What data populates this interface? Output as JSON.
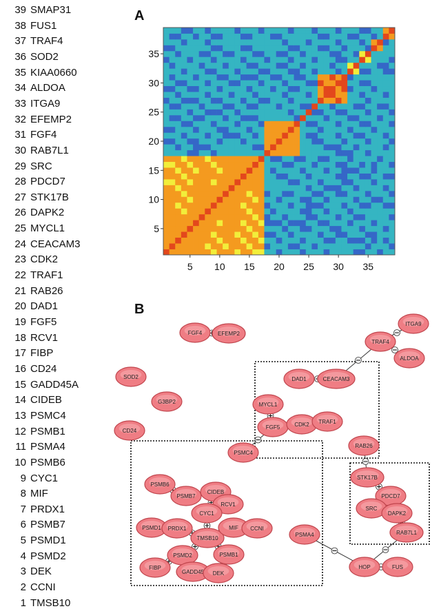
{
  "panels": {
    "a": "A",
    "b": "B"
  },
  "genes": [
    {
      "num": "39",
      "name": "SMAP31"
    },
    {
      "num": "38",
      "name": "FUS1"
    },
    {
      "num": "37",
      "name": "TRAF4"
    },
    {
      "num": "36",
      "name": "SOD2"
    },
    {
      "num": "35",
      "name": "KIAA0660"
    },
    {
      "num": "34",
      "name": "ALDOA"
    },
    {
      "num": "33",
      "name": "ITGA9"
    },
    {
      "num": "32",
      "name": "EFEMP2"
    },
    {
      "num": "31",
      "name": "FGF4"
    },
    {
      "num": "30",
      "name": "RAB7L1"
    },
    {
      "num": "29",
      "name": "SRC"
    },
    {
      "num": "28",
      "name": "PDCD7"
    },
    {
      "num": "27",
      "name": "STK17B"
    },
    {
      "num": "26",
      "name": "DAPK2"
    },
    {
      "num": "25",
      "name": "MYCL1"
    },
    {
      "num": "24",
      "name": "CEACAM3"
    },
    {
      "num": "23",
      "name": "CDK2"
    },
    {
      "num": "22",
      "name": "TRAF1"
    },
    {
      "num": "21",
      "name": "RAB26"
    },
    {
      "num": "20",
      "name": "DAD1"
    },
    {
      "num": "19",
      "name": "FGF5"
    },
    {
      "num": "18",
      "name": "RCV1"
    },
    {
      "num": "17",
      "name": "FIBP"
    },
    {
      "num": "16",
      "name": "CD24"
    },
    {
      "num": "15",
      "name": "GADD45A"
    },
    {
      "num": "14",
      "name": "CIDEB"
    },
    {
      "num": "13",
      "name": "PSMC4"
    },
    {
      "num": "12",
      "name": "PSMB1"
    },
    {
      "num": "11",
      "name": "PSMA4"
    },
    {
      "num": "10",
      "name": "PSMB6"
    },
    {
      "num": "9",
      "name": "CYC1"
    },
    {
      "num": "8",
      "name": "MIF"
    },
    {
      "num": "7",
      "name": "PRDX1"
    },
    {
      "num": "6",
      "name": "PSMB7"
    },
    {
      "num": "5",
      "name": "PSMD1"
    },
    {
      "num": "4",
      "name": "PSMD2"
    },
    {
      "num": "3",
      "name": "DEK"
    },
    {
      "num": "2",
      "name": "CCNI"
    },
    {
      "num": "1",
      "name": "TMSB10"
    }
  ],
  "chart_data": {
    "type": "heatmap",
    "title": "A",
    "n": 39,
    "x_ticks": [
      5,
      10,
      15,
      20,
      25,
      30,
      35
    ],
    "y_ticks": [
      5,
      10,
      15,
      20,
      25,
      30,
      35
    ],
    "xlim": [
      0,
      39
    ],
    "ylim": [
      0,
      39
    ],
    "blocks": [
      {
        "from": 1,
        "to": 17,
        "level": 0.82
      },
      {
        "from": 18,
        "to": 23,
        "level": 0.85
      },
      {
        "from": 27,
        "to": 31,
        "level": 0.92
      },
      {
        "from": 32,
        "to": 33,
        "level": 0.8
      },
      {
        "from": 34,
        "to": 35,
        "level": 0.82
      },
      {
        "from": 36,
        "to": 37,
        "level": 0.8
      },
      {
        "from": 38,
        "to": 39,
        "level": 0.8
      }
    ],
    "palette": [
      "#2e3f9e",
      "#3567c7",
      "#35b5c2",
      "#7fd34a",
      "#f2ee3a",
      "#f49a1f",
      "#e3471c"
    ]
  },
  "network": {
    "title": "B",
    "nodes": [
      {
        "id": "fgf4",
        "label": "FGF4"
      },
      {
        "id": "efemp2",
        "label": "EFEMP2"
      },
      {
        "id": "itga9",
        "label": "ITGA9"
      },
      {
        "id": "traf4",
        "label": "TRAF4"
      },
      {
        "id": "aldoa",
        "label": "ALDOA"
      },
      {
        "id": "sod2",
        "label": "SOD2"
      },
      {
        "id": "dad1",
        "label": "DAD1"
      },
      {
        "id": "ceacam",
        "label": "CEACAM3"
      },
      {
        "id": "g3bp2",
        "label": "G3BP2"
      },
      {
        "id": "mycl1",
        "label": "MYCL1"
      },
      {
        "id": "fgf5",
        "label": "FGF5"
      },
      {
        "id": "cdk2",
        "label": "CDK2"
      },
      {
        "id": "traf1",
        "label": "TRAF1"
      },
      {
        "id": "cd24",
        "label": "CD24"
      },
      {
        "id": "rab26",
        "label": "RAB26"
      },
      {
        "id": "psmc4",
        "label": "PSMC4"
      },
      {
        "id": "stk17b",
        "label": "STK17B"
      },
      {
        "id": "pdcd7",
        "label": "PDCD7"
      },
      {
        "id": "src",
        "label": "SRC"
      },
      {
        "id": "dapk2",
        "label": "DAPK2"
      },
      {
        "id": "rab7l1",
        "label": "RAB7L1"
      },
      {
        "id": "psmb6",
        "label": "PSMB6"
      },
      {
        "id": "psmb7",
        "label": "PSMB7"
      },
      {
        "id": "cideb",
        "label": "CIDEB"
      },
      {
        "id": "rcv1",
        "label": "RCV1"
      },
      {
        "id": "cyc1",
        "label": "CYC1"
      },
      {
        "id": "psmd1",
        "label": "PSMD1"
      },
      {
        "id": "prdx1",
        "label": "PRDX1"
      },
      {
        "id": "tmsb10",
        "label": "TMSB10"
      },
      {
        "id": "mif",
        "label": "MIF"
      },
      {
        "id": "ccni",
        "label": "CCNI"
      },
      {
        "id": "psmd2",
        "label": "PSMD2"
      },
      {
        "id": "psmb1",
        "label": "PSMB1"
      },
      {
        "id": "fibp",
        "label": "FIBP"
      },
      {
        "id": "gadd45",
        "label": "GADD45"
      },
      {
        "id": "dek",
        "label": "DEK"
      },
      {
        "id": "psma4",
        "label": "PSMA4"
      },
      {
        "id": "hop",
        "label": "HOP"
      },
      {
        "id": "fus",
        "label": "FUS"
      }
    ],
    "edges": [
      {
        "from": "fgf4",
        "to": "efemp2",
        "type": "plus"
      },
      {
        "from": "itga9",
        "to": "traf4",
        "type": "minus"
      },
      {
        "from": "traf4",
        "to": "aldoa",
        "type": "minus"
      },
      {
        "from": "traf4",
        "to": "ceacam",
        "type": "minus"
      },
      {
        "from": "dad1",
        "to": "ceacam",
        "type": "plus"
      },
      {
        "from": "mycl1",
        "to": "fgf5",
        "type": "plus"
      },
      {
        "from": "fgf5",
        "to": "cdk2",
        "type": "plus"
      },
      {
        "from": "cdk2",
        "to": "traf1",
        "type": "plus"
      },
      {
        "from": "psmc4",
        "to": "fgf5",
        "type": "minus"
      },
      {
        "from": "rab26",
        "to": "stk17b",
        "type": "minus"
      },
      {
        "from": "stk17b",
        "to": "pdcd7",
        "type": "plus"
      },
      {
        "from": "pdcd7",
        "to": "src",
        "type": "plus"
      },
      {
        "from": "src",
        "to": "dapk2",
        "type": "plus"
      },
      {
        "from": "dapk2",
        "to": "rab7l1",
        "type": "plus"
      },
      {
        "from": "psmb6",
        "to": "psmb7",
        "type": "plus"
      },
      {
        "from": "cideb",
        "to": "rcv1",
        "type": "plus"
      },
      {
        "from": "cideb",
        "to": "cyc1",
        "type": "plus"
      },
      {
        "from": "rcv1",
        "to": "cyc1",
        "type": "plus"
      },
      {
        "from": "psmd1",
        "to": "prdx1",
        "type": "plus"
      },
      {
        "from": "prdx1",
        "to": "tmsb10",
        "type": "plus"
      },
      {
        "from": "cyc1",
        "to": "tmsb10",
        "type": "plus"
      },
      {
        "from": "tmsb10",
        "to": "mif",
        "type": "plus"
      },
      {
        "from": "mif",
        "to": "ccni",
        "type": "plus"
      },
      {
        "from": "tmsb10",
        "to": "psmd2",
        "type": "plus"
      },
      {
        "from": "tmsb10",
        "to": "psmb1",
        "type": "plus"
      },
      {
        "from": "psmd2",
        "to": "fibp",
        "type": "plus"
      },
      {
        "from": "psmd2",
        "to": "gadd45",
        "type": "plus"
      },
      {
        "from": "psmb1",
        "to": "dek",
        "type": "plus"
      },
      {
        "from": "psma4",
        "to": "hop",
        "type": "minus"
      },
      {
        "from": "hop",
        "to": "fus",
        "type": "minus"
      },
      {
        "from": "hop",
        "to": "rab7l1",
        "type": "minus"
      }
    ]
  }
}
